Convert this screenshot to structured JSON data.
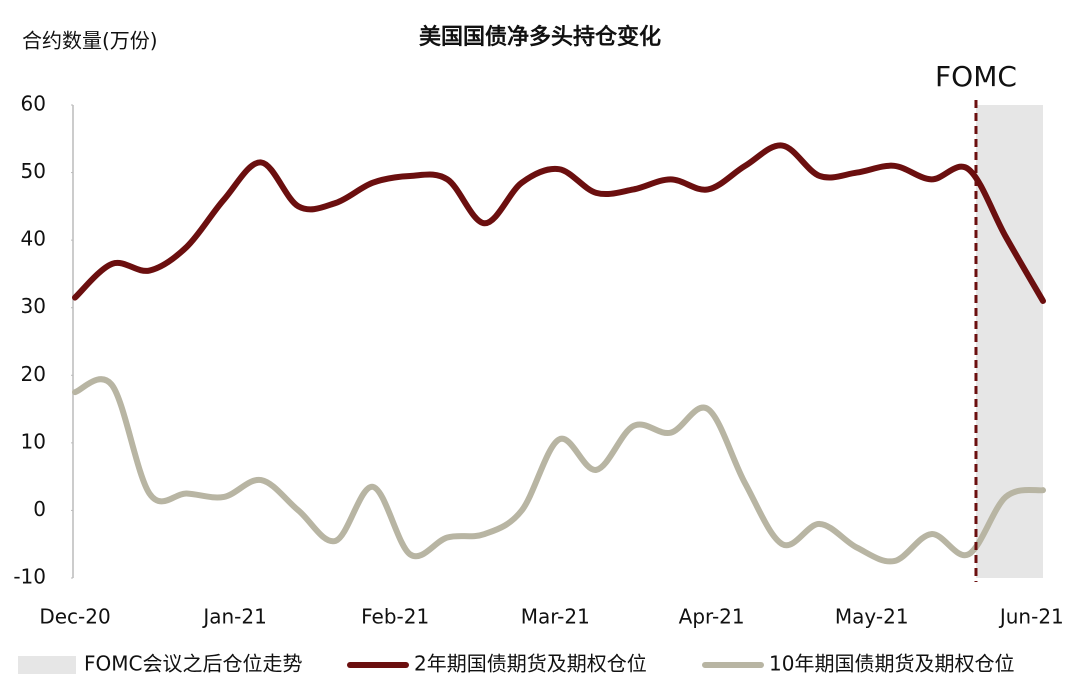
{
  "chart_data": {
    "type": "line",
    "title": "美国国债净多头持仓变化",
    "y_label": "合约数量(万份)",
    "x": [
      0,
      1,
      2,
      3,
      4,
      5,
      6,
      7,
      8,
      9,
      10,
      11,
      12,
      13,
      14,
      15,
      16,
      17,
      18,
      19,
      20,
      21,
      22,
      23,
      24,
      25,
      26
    ],
    "xlim": [
      0,
      26
    ],
    "xticks": [
      {
        "value": 0,
        "label": "Dec-20"
      },
      {
        "value": 4.3,
        "label": "Jan-21"
      },
      {
        "value": 8.6,
        "label": "Feb-21"
      },
      {
        "value": 12.9,
        "label": "Mar-21"
      },
      {
        "value": 17.1,
        "label": "Apr-21"
      },
      {
        "value": 21.4,
        "label": "May-21"
      },
      {
        "value": 25.7,
        "label": "Jun-21"
      }
    ],
    "ylim": [
      -10,
      60
    ],
    "yticks": [
      -10,
      0,
      10,
      20,
      30,
      40,
      50,
      60
    ],
    "grid": false,
    "series": [
      {
        "name": "2年期国债期货及期权仓位",
        "color": "#6b0f0f",
        "values": [
          31.5,
          36.5,
          35.5,
          39,
          46,
          51.5,
          45,
          45.5,
          48.5,
          49.5,
          49,
          42.5,
          48.5,
          50.5,
          47,
          47.5,
          49,
          47.5,
          51,
          54,
          49.5,
          50,
          51,
          49,
          50.5,
          40.5,
          31
        ]
      },
      {
        "name": "10年期国债期货及期权仓位",
        "color": "#b8b5a3",
        "values": [
          17.5,
          18.5,
          2.5,
          2.5,
          2,
          4.5,
          0,
          -4.5,
          3.5,
          -6.5,
          -4,
          -3.5,
          0,
          10.5,
          6,
          12.5,
          11.5,
          15,
          4,
          -5,
          -2,
          -5.5,
          -7.5,
          -3.5,
          -6.5,
          2,
          3
        ]
      }
    ],
    "shade": {
      "name": "FOMC会议之后仓位走势",
      "x0": 24.2,
      "x1": 26,
      "color": "#e6e6e6"
    },
    "vline": {
      "x": 24.2,
      "label": "FOMC",
      "color": "#6b0f0f"
    }
  }
}
